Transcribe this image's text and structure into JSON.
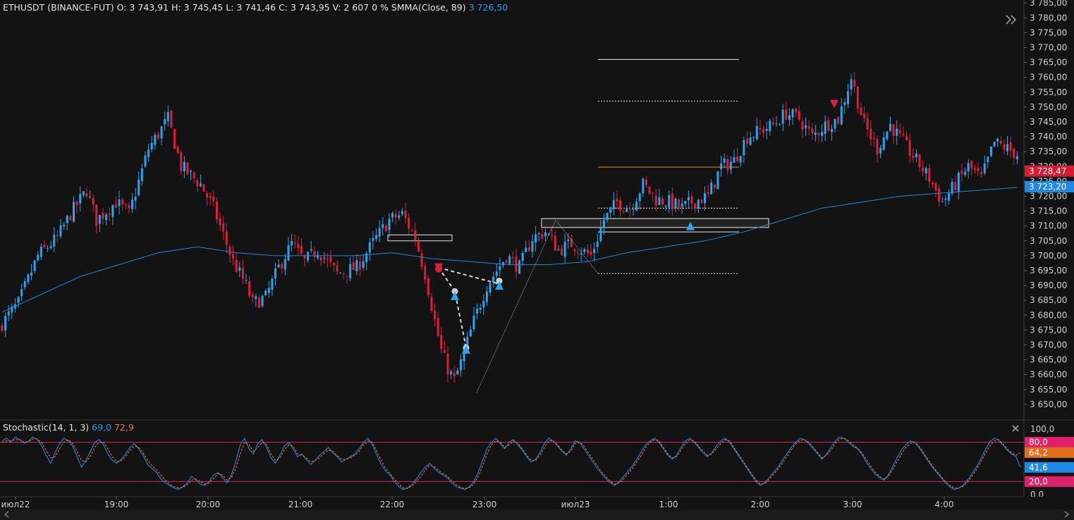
{
  "header": {
    "symbol": "ETHUSDT (BINANCE-FUT)",
    "ohlcv": "O: 3 743,91  H: 3 745,45  L: 3 741,46  C: 3 743,95  V: 2 607  0 %",
    "indicator": "SMMA(Close, 89)",
    "indicator_value": "3 726,50"
  },
  "stoch_header": {
    "name": "Stochastic(14, 1, 3)",
    "k_value": "69,0",
    "d_value": "72,9"
  },
  "icons": {
    "expand": "double-chevron-right-icon",
    "close_panel": "close-icon"
  },
  "colors": {
    "background": "#131313",
    "bull": "#29a4ef",
    "bear": "#d9203a",
    "smma": "#1f86e0",
    "stoch_k": "#1f86e0",
    "stoch_d": "#e8761e",
    "stoch_band": "#e0206a",
    "level_orange": "#e58a2a",
    "label_red_bg": "#d21d33",
    "label_blue_bg": "#1e8ae6",
    "label_pink_bg": "#e0206a",
    "label_orange_bg": "#e46f1a"
  },
  "price_labels": {
    "current_red": "3 728,47",
    "smma_blue": "3 723,20"
  },
  "stoch_labels": {
    "top": "100,0",
    "upper_band": "80,0",
    "d_current": "64,2",
    "k_current": "41,6",
    "lower_band": "20,0",
    "bottom": "0,0"
  },
  "chart_data": [
    {
      "type": "candlestick",
      "ylim": [
        3645,
        3786
      ],
      "y_ticks": [
        3650,
        3655,
        3660,
        3665,
        3670,
        3675,
        3680,
        3685,
        3690,
        3695,
        3700,
        3705,
        3710,
        3715,
        3720,
        3725,
        3730,
        3735,
        3740,
        3745,
        3750,
        3755,
        3760,
        3765,
        3770,
        3775,
        3780,
        3785
      ],
      "y_tick_labels": [
        "3 650,00",
        "3 655,00",
        "3 660,00",
        "3 665,00",
        "3 670,00",
        "3 675,00",
        "3 680,00",
        "3 685,00",
        "3 690,00",
        "3 695,00",
        "3 700,00",
        "3 705,00",
        "3 710,00",
        "3 715,00",
        "3 720,00",
        "3 725,00",
        "3 730,00",
        "3 735,00",
        "3 740,00",
        "3 745,00",
        "3 750,00",
        "3 755,00",
        "3 760,00",
        "3 765,00",
        "3 770,00",
        "3 775,00",
        "3 780,00",
        "3 785,00"
      ],
      "x_labels": [
        "июл22",
        "19:00",
        "20:00",
        "21:00",
        "22:00",
        "23:00",
        "июл23",
        "1:00",
        "2:00",
        "3:00",
        "4:00"
      ],
      "close_path": [
        [
          0,
          3676
        ],
        [
          6,
          3684
        ],
        [
          12,
          3700
        ],
        [
          18,
          3706
        ],
        [
          22,
          3714
        ],
        [
          27,
          3722
        ],
        [
          30,
          3712
        ],
        [
          36,
          3718
        ],
        [
          40,
          3714
        ],
        [
          46,
          3736
        ],
        [
          52,
          3746
        ],
        [
          56,
          3730
        ],
        [
          62,
          3724
        ],
        [
          66,
          3716
        ],
        [
          72,
          3698
        ],
        [
          76,
          3690
        ],
        [
          78,
          3684
        ],
        [
          82,
          3686
        ],
        [
          86,
          3696
        ],
        [
          90,
          3704
        ],
        [
          94,
          3698
        ],
        [
          98,
          3702
        ],
        [
          104,
          3694
        ],
        [
          110,
          3696
        ],
        [
          116,
          3706
        ],
        [
          120,
          3712
        ],
        [
          124,
          3714
        ],
        [
          128,
          3706
        ],
        [
          131,
          3694
        ],
        [
          134,
          3678
        ],
        [
          136,
          3668
        ],
        [
          138,
          3662
        ],
        [
          140,
          3658
        ],
        [
          142,
          3664
        ],
        [
          146,
          3678
        ],
        [
          150,
          3690
        ],
        [
          156,
          3700
        ],
        [
          160,
          3696
        ],
        [
          164,
          3706
        ],
        [
          168,
          3708
        ],
        [
          172,
          3702
        ],
        [
          176,
          3704
        ],
        [
          182,
          3700
        ],
        [
          186,
          3712
        ],
        [
          190,
          3718
        ],
        [
          194,
          3716
        ],
        [
          198,
          3724
        ],
        [
          202,
          3719
        ],
        [
          206,
          3718
        ],
        [
          210,
          3716
        ],
        [
          213,
          3718
        ],
        [
          218,
          3720
        ],
        [
          222,
          3730
        ],
        [
          226,
          3732
        ],
        [
          230,
          3740
        ],
        [
          234,
          3742
        ],
        [
          238,
          3744
        ],
        [
          242,
          3748
        ],
        [
          246,
          3746
        ],
        [
          250,
          3740
        ],
        [
          254,
          3744
        ],
        [
          258,
          3746
        ],
        [
          262,
          3760
        ],
        [
          266,
          3744
        ],
        [
          270,
          3736
        ],
        [
          274,
          3744
        ],
        [
          278,
          3738
        ],
        [
          282,
          3732
        ],
        [
          286,
          3726
        ],
        [
          290,
          3718
        ],
        [
          294,
          3724
        ],
        [
          298,
          3730
        ],
        [
          302,
          3726
        ],
        [
          306,
          3738
        ],
        [
          310,
          3736
        ],
        [
          313,
          3734
        ]
      ],
      "smma_path": [
        [
          0,
          3681
        ],
        [
          12,
          3687
        ],
        [
          24,
          3693
        ],
        [
          36,
          3697
        ],
        [
          48,
          3701
        ],
        [
          60,
          3703
        ],
        [
          72,
          3701
        ],
        [
          84,
          3700
        ],
        [
          96,
          3700
        ],
        [
          108,
          3700
        ],
        [
          120,
          3701
        ],
        [
          132,
          3699
        ],
        [
          144,
          3698
        ],
        [
          156,
          3697
        ],
        [
          168,
          3697
        ],
        [
          180,
          3698
        ],
        [
          192,
          3701
        ],
        [
          204,
          3703
        ],
        [
          216,
          3705
        ],
        [
          228,
          3708
        ],
        [
          240,
          3712
        ],
        [
          252,
          3716
        ],
        [
          264,
          3718
        ],
        [
          276,
          3720
        ],
        [
          288,
          3721
        ],
        [
          300,
          3722
        ],
        [
          313,
          3723
        ]
      ],
      "levels": [
        {
          "price": 3766,
          "style": "solid"
        },
        {
          "price": 3752,
          "style": "dotted"
        },
        {
          "price": 3729.8,
          "style": "solid",
          "color": "orange"
        },
        {
          "price": 3716,
          "style": "dotted"
        },
        {
          "price": 3708,
          "style": "solid"
        },
        {
          "price": 3694,
          "style": "dotted"
        }
      ],
      "last_price": 3728.47,
      "smma_last": 3723.2
    },
    {
      "type": "line",
      "name": "Stochastic(14, 1, 3)",
      "ylim": [
        0,
        100
      ],
      "bands": [
        80,
        20
      ],
      "series": [
        {
          "values": [
            82,
            86,
            80,
            88,
            84,
            78,
            82,
            88,
            84,
            74,
            60,
            48,
            64,
            78,
            86,
            82,
            74,
            58,
            42,
            52,
            66,
            80,
            84,
            76,
            62,
            52,
            48,
            54,
            62,
            72,
            78,
            70,
            60,
            46,
            40,
            34,
            24,
            18,
            14,
            10,
            8,
            12,
            18,
            28,
            22,
            16,
            14,
            20,
            30,
            34,
            26,
            18,
            30,
            50,
            76,
            86,
            70,
            62,
            78,
            84,
            72,
            56,
            48,
            60,
            74,
            80,
            70,
            58,
            62,
            54,
            46,
            52,
            60,
            66,
            72,
            64,
            58,
            50,
            54,
            58,
            62,
            70,
            80,
            86,
            76,
            60,
            46,
            36,
            30,
            20,
            12,
            8,
            10,
            16,
            24,
            34,
            42,
            48,
            40,
            34,
            30,
            26,
            18,
            12,
            10,
            8,
            12,
            20,
            34,
            52,
            70,
            80,
            86,
            78,
            70,
            80,
            84,
            76,
            68,
            58,
            50,
            54,
            64,
            78,
            86,
            82,
            74,
            66,
            60,
            70,
            82,
            80,
            70,
            60,
            50,
            40,
            32,
            24,
            18,
            14,
            20,
            28,
            36,
            44,
            54,
            66,
            76,
            82,
            86,
            80,
            70,
            60,
            54,
            60,
            72,
            82,
            86,
            80,
            72,
            64,
            58,
            64,
            74,
            82,
            86,
            80,
            70,
            60,
            50,
            40,
            30,
            20,
            14,
            18,
            26,
            34,
            42,
            52,
            62,
            72,
            80,
            86,
            84,
            78,
            70,
            62,
            54,
            62,
            72,
            82,
            88,
            86,
            80,
            74,
            70,
            62,
            50,
            40,
            32,
            26,
            22,
            30,
            42,
            56,
            68,
            76,
            82,
            80,
            72,
            62,
            52,
            42,
            34,
            26,
            18,
            12,
            8,
            10,
            14,
            22,
            32,
            42,
            54,
            68,
            80,
            86,
            84,
            76,
            68,
            62,
            58,
            41.6
          ]
        },
        {
          "values": [
            80,
            82,
            82,
            84,
            84,
            80,
            81,
            85,
            85,
            79,
            68,
            56,
            58,
            70,
            80,
            84,
            78,
            66,
            52,
            50,
            58,
            72,
            80,
            80,
            70,
            58,
            50,
            52,
            58,
            68,
            74,
            72,
            64,
            52,
            44,
            38,
            30,
            22,
            16,
            12,
            10,
            11,
            15,
            22,
            24,
            20,
            16,
            18,
            25,
            32,
            30,
            22,
            26,
            40,
            62,
            80,
            76,
            66,
            72,
            80,
            76,
            62,
            52,
            56,
            68,
            76,
            74,
            62,
            60,
            56,
            50,
            52,
            56,
            63,
            68,
            66,
            60,
            54,
            54,
            56,
            60,
            66,
            76,
            82,
            80,
            66,
            52,
            40,
            32,
            24,
            16,
            10,
            10,
            13,
            20,
            28,
            38,
            45,
            43,
            37,
            32,
            28,
            21,
            15,
            11,
            9,
            11,
            16,
            28,
            44,
            62,
            76,
            82,
            80,
            72,
            76,
            82,
            78,
            70,
            60,
            52,
            52,
            60,
            72,
            82,
            82,
            76,
            68,
            62,
            66,
            78,
            80,
            74,
            64,
            54,
            44,
            35,
            27,
            20,
            16,
            18,
            24,
            32,
            40,
            50,
            60,
            72,
            80,
            84,
            82,
            72,
            62,
            56,
            58,
            68,
            78,
            84,
            82,
            74,
            66,
            60,
            62,
            70,
            78,
            84,
            82,
            72,
            62,
            52,
            42,
            32,
            23,
            16,
            17,
            23,
            31,
            39,
            48,
            58,
            68,
            77,
            83,
            84,
            80,
            72,
            64,
            56,
            60,
            68,
            78,
            85,
            86,
            82,
            76,
            71,
            64,
            54,
            44,
            35,
            28,
            24,
            28,
            38,
            50,
            62,
            72,
            78,
            80,
            74,
            64,
            54,
            44,
            36,
            28,
            20,
            14,
            10,
            10,
            13,
            19,
            28,
            38,
            50,
            62,
            74,
            82,
            84,
            78,
            70,
            64,
            60,
            64.2
          ]
        }
      ]
    }
  ]
}
